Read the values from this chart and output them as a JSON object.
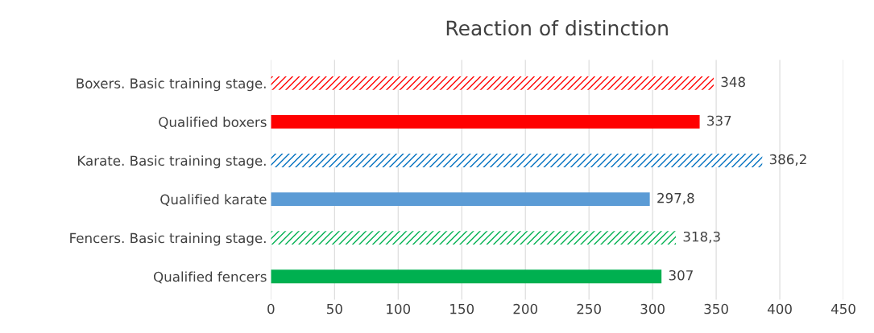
{
  "chart_data": {
    "type": "bar",
    "orientation": "horizontal",
    "title": "Reaction of distinction",
    "categories": [
      "Boxers. Basic training stage.",
      "Qualified boxers",
      "Karate. Basic training stage.",
      "Qualified karate",
      "Fencers. Basic training stage.",
      "Qualified fencers"
    ],
    "series": [
      {
        "line_style": "dashed",
        "colors": [
          "#ff0000",
          null,
          "#0070c0",
          null,
          "#00b050",
          null
        ],
        "values": [
          348,
          null,
          386.2,
          null,
          318.3,
          null
        ],
        "value_labels": [
          "348",
          null,
          "386,2",
          null,
          "318,3",
          null
        ]
      },
      {
        "line_style": "solid",
        "colors": [
          null,
          "#ff0000",
          null,
          "#5b9bd5",
          null,
          "#00b050"
        ],
        "values": [
          null,
          337,
          null,
          297.8,
          null,
          307
        ],
        "value_labels": [
          null,
          "337",
          null,
          "297,8",
          null,
          "307"
        ]
      }
    ],
    "xlim": [
      0,
      450
    ],
    "xticks": [
      0,
      50,
      100,
      150,
      200,
      250,
      300,
      350,
      400,
      450
    ],
    "grid": "x"
  }
}
